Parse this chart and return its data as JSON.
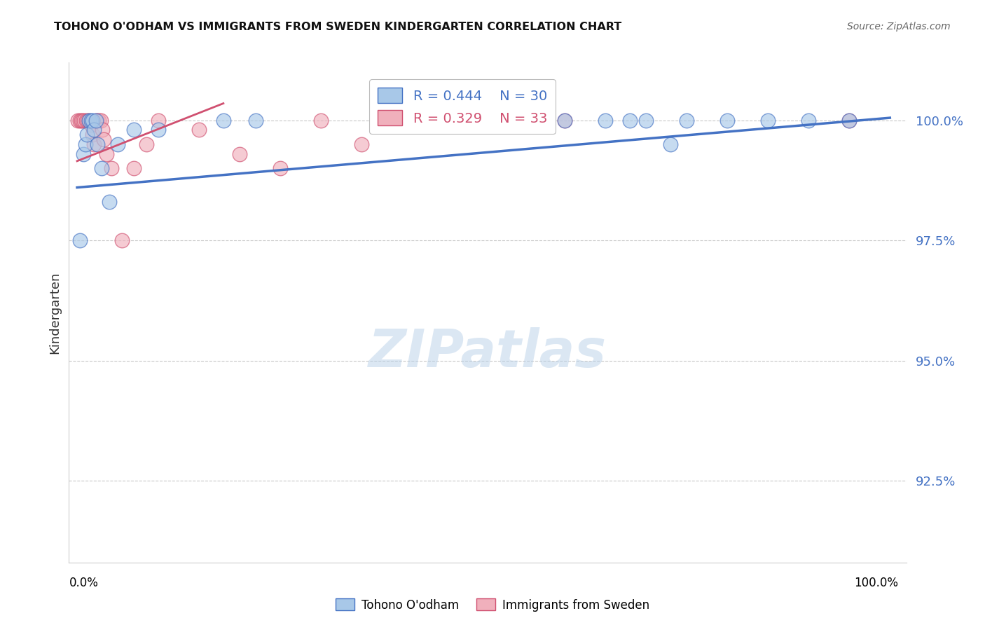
{
  "title": "TOHONO O'ODHAM VS IMMIGRANTS FROM SWEDEN KINDERGARTEN CORRELATION CHART",
  "source": "Source: ZipAtlas.com",
  "ylabel": "Kindergarten",
  "watermark": "ZIPatlas",
  "xlim": [
    -1,
    102
  ],
  "ylim": [
    90.8,
    101.2
  ],
  "yticks": [
    92.5,
    95.0,
    97.5,
    100.0
  ],
  "ytick_labels": [
    "92.5%",
    "95.0%",
    "97.5%",
    "100.0%"
  ],
  "grid_color": "#c8c8c8",
  "blue_fill_color": "#a8c8e8",
  "pink_fill_color": "#f0b0bc",
  "blue_edge_color": "#4472C4",
  "pink_edge_color": "#D05070",
  "legend_R_blue": "0.444",
  "legend_N_blue": "30",
  "legend_R_pink": "0.329",
  "legend_N_pink": "33",
  "blue_scatter_x": [
    0.3,
    0.8,
    1.0,
    1.2,
    1.5,
    1.7,
    1.9,
    2.1,
    2.3,
    2.5,
    3.0,
    4.0,
    5.0,
    7.0,
    10.0,
    18.0,
    22.0,
    40.0,
    50.0,
    55.0,
    60.0,
    65.0,
    68.0,
    70.0,
    73.0,
    75.0,
    80.0,
    85.0,
    90.0,
    95.0
  ],
  "blue_scatter_y": [
    97.5,
    99.3,
    99.5,
    99.7,
    100.0,
    100.0,
    100.0,
    99.8,
    100.0,
    99.5,
    99.0,
    98.3,
    99.5,
    99.8,
    99.8,
    100.0,
    100.0,
    100.0,
    100.0,
    100.0,
    100.0,
    100.0,
    100.0,
    100.0,
    99.5,
    100.0,
    100.0,
    100.0,
    100.0,
    100.0
  ],
  "pink_scatter_x": [
    0.1,
    0.3,
    0.5,
    0.7,
    0.9,
    1.1,
    1.3,
    1.5,
    1.7,
    1.9,
    2.1,
    2.3,
    2.5,
    2.7,
    2.9,
    3.1,
    3.3,
    3.6,
    4.2,
    5.5,
    7.0,
    8.5,
    10.0,
    15.0,
    20.0,
    25.0,
    30.0,
    35.0,
    40.0,
    45.0,
    50.0,
    60.0,
    95.0
  ],
  "pink_scatter_y": [
    100.0,
    100.0,
    100.0,
    100.0,
    100.0,
    100.0,
    100.0,
    100.0,
    99.9,
    99.7,
    99.5,
    100.0,
    100.0,
    100.0,
    100.0,
    99.8,
    99.6,
    99.3,
    99.0,
    97.5,
    99.0,
    99.5,
    100.0,
    99.8,
    99.3,
    99.0,
    100.0,
    99.5,
    100.0,
    100.0,
    100.0,
    100.0,
    100.0
  ],
  "blue_regression_x0": 0,
  "blue_regression_x1": 100,
  "blue_regression_y0": 98.6,
  "blue_regression_y1": 100.05,
  "pink_regression_x0": 0,
  "pink_regression_x1": 18,
  "pink_regression_y0": 99.15,
  "pink_regression_y1": 100.35
}
